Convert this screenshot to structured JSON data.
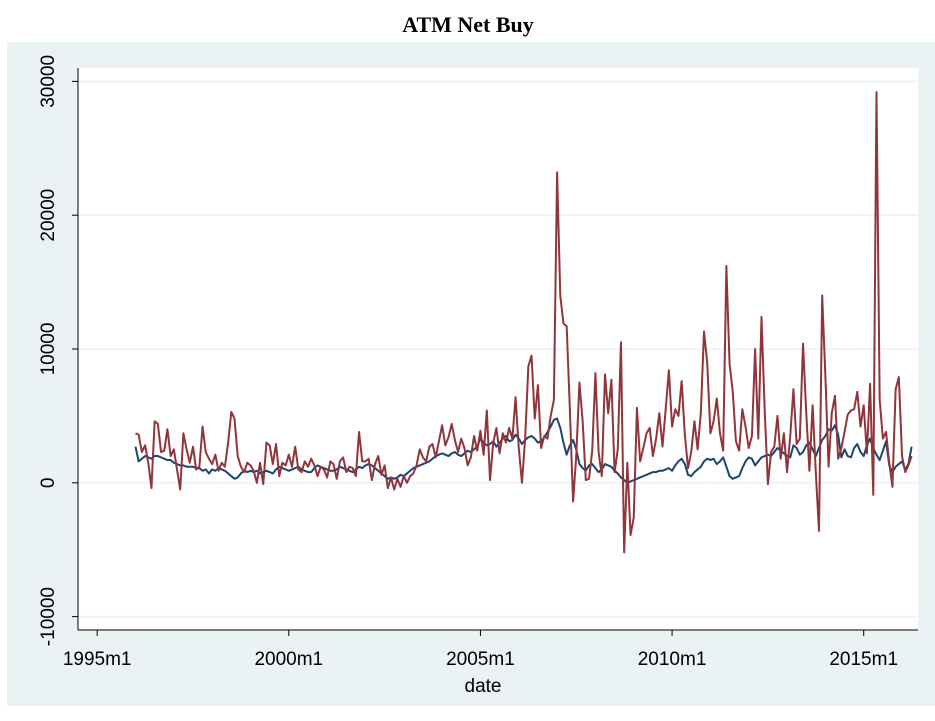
{
  "chart_data": {
    "type": "line",
    "title": "ATM Net Buy",
    "x_label": "date",
    "x": [
      "1996m1",
      "1996m2",
      "1996m3",
      "1996m4",
      "1996m5",
      "1996m6",
      "1996m7",
      "1996m8",
      "1996m9",
      "1996m10",
      "1996m11",
      "1996m12",
      "1997m1",
      "1997m2",
      "1997m3",
      "1997m4",
      "1997m5",
      "1997m6",
      "1997m7",
      "1997m8",
      "1997m9",
      "1997m10",
      "1997m11",
      "1997m12",
      "1998m1",
      "1998m2",
      "1998m3",
      "1998m4",
      "1998m5",
      "1998m6",
      "1998m7",
      "1998m8",
      "1998m9",
      "1998m10",
      "1998m11",
      "1998m12",
      "1999m1",
      "1999m2",
      "1999m3",
      "1999m4",
      "1999m5",
      "1999m6",
      "1999m7",
      "1999m8",
      "1999m9",
      "1999m10",
      "1999m11",
      "1999m12",
      "2000m1",
      "2000m2",
      "2000m3",
      "2000m4",
      "2000m5",
      "2000m6",
      "2000m7",
      "2000m8",
      "2000m9",
      "2000m10",
      "2000m11",
      "2000m12",
      "2001m1",
      "2001m2",
      "2001m3",
      "2001m4",
      "2001m5",
      "2001m6",
      "2001m7",
      "2001m8",
      "2001m9",
      "2001m10",
      "2001m11",
      "2001m12",
      "2002m1",
      "2002m2",
      "2002m3",
      "2002m4",
      "2002m5",
      "2002m6",
      "2002m7",
      "2002m8",
      "2002m9",
      "2002m10",
      "2002m11",
      "2002m12",
      "2003m1",
      "2003m2",
      "2003m3",
      "2003m4",
      "2003m5",
      "2003m6",
      "2003m7",
      "2003m8",
      "2003m9",
      "2003m10",
      "2003m11",
      "2003m12",
      "2004m1",
      "2004m2",
      "2004m3",
      "2004m4",
      "2004m5",
      "2004m6",
      "2004m7",
      "2004m8",
      "2004m9",
      "2004m10",
      "2004m11",
      "2004m12",
      "2005m1",
      "2005m2",
      "2005m3",
      "2005m4",
      "2005m5",
      "2005m6",
      "2005m7",
      "2005m8",
      "2005m9",
      "2005m10",
      "2005m11",
      "2005m12",
      "2006m1",
      "2006m2",
      "2006m3",
      "2006m4",
      "2006m5",
      "2006m6",
      "2006m7",
      "2006m8",
      "2006m9",
      "2006m10",
      "2006m11",
      "2006m12",
      "2007m1",
      "2007m2",
      "2007m3",
      "2007m4",
      "2007m5",
      "2007m6",
      "2007m7",
      "2007m8",
      "2007m9",
      "2007m10",
      "2007m11",
      "2007m12",
      "2008m1",
      "2008m2",
      "2008m3",
      "2008m4",
      "2008m5",
      "2008m6",
      "2008m7",
      "2008m8",
      "2008m9",
      "2008m10",
      "2008m11",
      "2008m12",
      "2009m1",
      "2009m2",
      "2009m3",
      "2009m4",
      "2009m5",
      "2009m6",
      "2009m7",
      "2009m8",
      "2009m9",
      "2009m10",
      "2009m11",
      "2009m12",
      "2010m1",
      "2010m2",
      "2010m3",
      "2010m4",
      "2010m5",
      "2010m6",
      "2010m7",
      "2010m8",
      "2010m9",
      "2010m10",
      "2010m11",
      "2010m12",
      "2011m1",
      "2011m2",
      "2011m3",
      "2011m4",
      "2011m5",
      "2011m6",
      "2011m7",
      "2011m8",
      "2011m9",
      "2011m10",
      "2011m11",
      "2011m12",
      "2012m1",
      "2012m2",
      "2012m3",
      "2012m4",
      "2012m5",
      "2012m6",
      "2012m7",
      "2012m8",
      "2012m9",
      "2012m10",
      "2012m11",
      "2012m12",
      "2013m1",
      "2013m2",
      "2013m3",
      "2013m4",
      "2013m5",
      "2013m6",
      "2013m7",
      "2013m8",
      "2013m9",
      "2013m10",
      "2013m11",
      "2013m12",
      "2014m1",
      "2014m2",
      "2014m3",
      "2014m4",
      "2014m5",
      "2014m6",
      "2014m7",
      "2014m8",
      "2014m9",
      "2014m10",
      "2014m11",
      "2014m12",
      "2015m1",
      "2015m2",
      "2015m3",
      "2015m4",
      "2015m5",
      "2015m6",
      "2015m7",
      "2015m8",
      "2015m9",
      "2015m10",
      "2015m11",
      "2015m12",
      "2016m1",
      "2016m2",
      "2016m3",
      "2016m4"
    ],
    "series": [
      {
        "color": "#1a476f",
        "values": [
          2700,
          1600,
          1800,
          2000,
          1900,
          1800,
          2000,
          2000,
          1900,
          1800,
          1700,
          1700,
          1500,
          1400,
          1300,
          1300,
          1200,
          1200,
          1200,
          1100,
          1100,
          900,
          1000,
          700,
          1000,
          900,
          1100,
          1000,
          900,
          700,
          500,
          300,
          400,
          700,
          900,
          800,
          900,
          800,
          900,
          700,
          800,
          900,
          800,
          700,
          1000,
          1200,
          1100,
          1000,
          900,
          1000,
          1100,
          1200,
          1000,
          900,
          800,
          800,
          1100,
          1300,
          1200,
          1100,
          1000,
          900,
          900,
          1000,
          1200,
          1100,
          1000,
          900,
          800,
          1000,
          1200,
          1100,
          1300,
          1400,
          1300,
          1100,
          900,
          700,
          500,
          300,
          400,
          300,
          400,
          600,
          500,
          700,
          900,
          1100,
          1200,
          1300,
          1400,
          1500,
          1600,
          1800,
          2000,
          2100,
          2200,
          2100,
          2000,
          2200,
          2300,
          2100,
          2000,
          2200,
          2400,
          2300,
          2500,
          2700,
          3300,
          3000,
          2800,
          2900,
          3100,
          2700,
          3000,
          3300,
          3500,
          3100,
          3200,
          3600,
          3300,
          2900,
          3200,
          3400,
          3500,
          3300,
          3000,
          3100,
          3400,
          3800,
          4200,
          4700,
          4800,
          4100,
          3000,
          2100,
          2800,
          3200,
          2500,
          1400,
          1100,
          900,
          1300,
          1400,
          1100,
          800,
          1000,
          1400,
          1300,
          1200,
          900,
          700,
          400,
          200,
          0,
          100,
          200,
          300,
          400,
          500,
          600,
          700,
          800,
          800,
          900,
          900,
          1000,
          1100,
          900,
          1300,
          1600,
          1800,
          1400,
          600,
          500,
          800,
          1000,
          1200,
          1600,
          1800,
          1700,
          1800,
          1400,
          1600,
          1900,
          1200,
          500,
          300,
          400,
          500,
          1100,
          1600,
          1900,
          1800,
          1300,
          1600,
          1900,
          2000,
          2100,
          2000,
          2300,
          2600,
          2400,
          2200,
          2000,
          1900,
          2800,
          2600,
          2100,
          2300,
          2800,
          3000,
          2500,
          2000,
          2600,
          3200,
          3500,
          4000,
          3900,
          4300,
          3600,
          1900,
          2500,
          2000,
          1900,
          2600,
          2900,
          2300,
          2000,
          2800,
          3300,
          2600,
          2100,
          1700,
          2400,
          3100,
          1300,
          800,
          1200,
          1400,
          1600,
          1000,
          1400,
          2700
        ]
      },
      {
        "color": "#90353b",
        "values": [
          3700,
          3600,
          2300,
          2800,
          1500,
          -400,
          4600,
          4400,
          2300,
          2400,
          4000,
          2000,
          2500,
          1000,
          -500,
          3700,
          2500,
          1500,
          2700,
          1000,
          1200,
          4200,
          2300,
          1800,
          1400,
          2100,
          900,
          1500,
          1200,
          3000,
          5300,
          4800,
          2000,
          1200,
          800,
          1500,
          1300,
          900,
          0,
          1500,
          -100,
          3000,
          2800,
          1400,
          2900,
          500,
          1500,
          1300,
          2100,
          1200,
          2700,
          1000,
          800,
          1600,
          1200,
          1800,
          1300,
          500,
          1200,
          1000,
          400,
          1600,
          1400,
          300,
          1600,
          1900,
          800,
          1200,
          1100,
          500,
          3800,
          1600,
          1600,
          1800,
          200,
          1400,
          2000,
          600,
          1300,
          -400,
          400,
          -500,
          300,
          -300,
          500,
          0,
          500,
          700,
          1300,
          2500,
          1900,
          1600,
          2700,
          2900,
          1900,
          3100,
          4300,
          2800,
          3400,
          4400,
          3200,
          2300,
          3300,
          2600,
          1300,
          1900,
          3500,
          2400,
          3900,
          2100,
          5400,
          200,
          3000,
          4100,
          2200,
          3700,
          3000,
          4100,
          3300,
          6400,
          2600,
          0,
          3300,
          8700,
          9500,
          4800,
          7300,
          2600,
          3500,
          3300,
          5000,
          6200,
          23200,
          14000,
          11900,
          11700,
          5500,
          -1400,
          2000,
          7500,
          4600,
          200,
          300,
          2400,
          8200,
          2300,
          500,
          8100,
          5200,
          7700,
          800,
          2500,
          10500,
          -5200,
          1500,
          -3900,
          -2600,
          5600,
          1600,
          2600,
          3700,
          4100,
          2000,
          3300,
          5200,
          2700,
          5500,
          8400,
          4200,
          5500,
          5000,
          7600,
          3600,
          1100,
          2300,
          4600,
          2500,
          5200,
          11300,
          9000,
          3700,
          4600,
          6300,
          3700,
          2400,
          16200,
          8900,
          6800,
          3100,
          2400,
          5500,
          4200,
          2600,
          3500,
          10000,
          3300,
          12400,
          5400,
          -100,
          2300,
          2700,
          5000,
          1800,
          3700,
          800,
          3500,
          7000,
          2900,
          3300,
          10400,
          5300,
          900,
          5800,
          800,
          -3600,
          14000,
          8000,
          1200,
          5200,
          6500,
          1800,
          2600,
          3800,
          5100,
          5400,
          5500,
          6800,
          4200,
          5800,
          2200,
          7400,
          -900,
          29200,
          6200,
          3300,
          3800,
          1500,
          -300,
          7000,
          7900,
          2000,
          800,
          1300,
          2000
        ]
      }
    ],
    "xlim": [
      "1994m7",
      "2016m6"
    ],
    "xticks": [
      "1995m1",
      "2000m1",
      "2005m1",
      "2010m1",
      "2015m1"
    ],
    "ylim": [
      -11000,
      31000
    ],
    "yticks": [
      -10000,
      0,
      10000,
      20000,
      30000
    ],
    "grid": true
  }
}
